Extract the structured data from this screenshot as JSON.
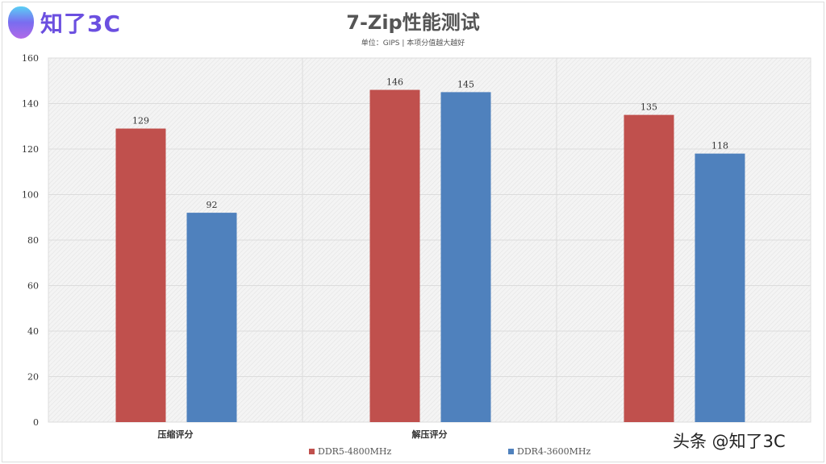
{
  "logo_text": "知了3C",
  "watermark": "头条 @知了3C",
  "chart_data": {
    "type": "bar",
    "title": "7-Zip性能测试",
    "subtitle": "单位：GIPS | 本项分值越大越好",
    "categories": [
      "压缩评分",
      "解压评分",
      ""
    ],
    "series": [
      {
        "name": "DDR5-4800MHz",
        "color": "#c0504d",
        "values": [
          129,
          146,
          135
        ]
      },
      {
        "name": "DDR4-3600MHz",
        "color": "#4f81bd",
        "values": [
          92,
          145,
          118
        ]
      }
    ],
    "yticks": [
      0,
      20,
      40,
      60,
      80,
      100,
      120,
      140,
      160
    ],
    "ylim": [
      0,
      160
    ],
    "grid": true,
    "legend": "bottom"
  }
}
